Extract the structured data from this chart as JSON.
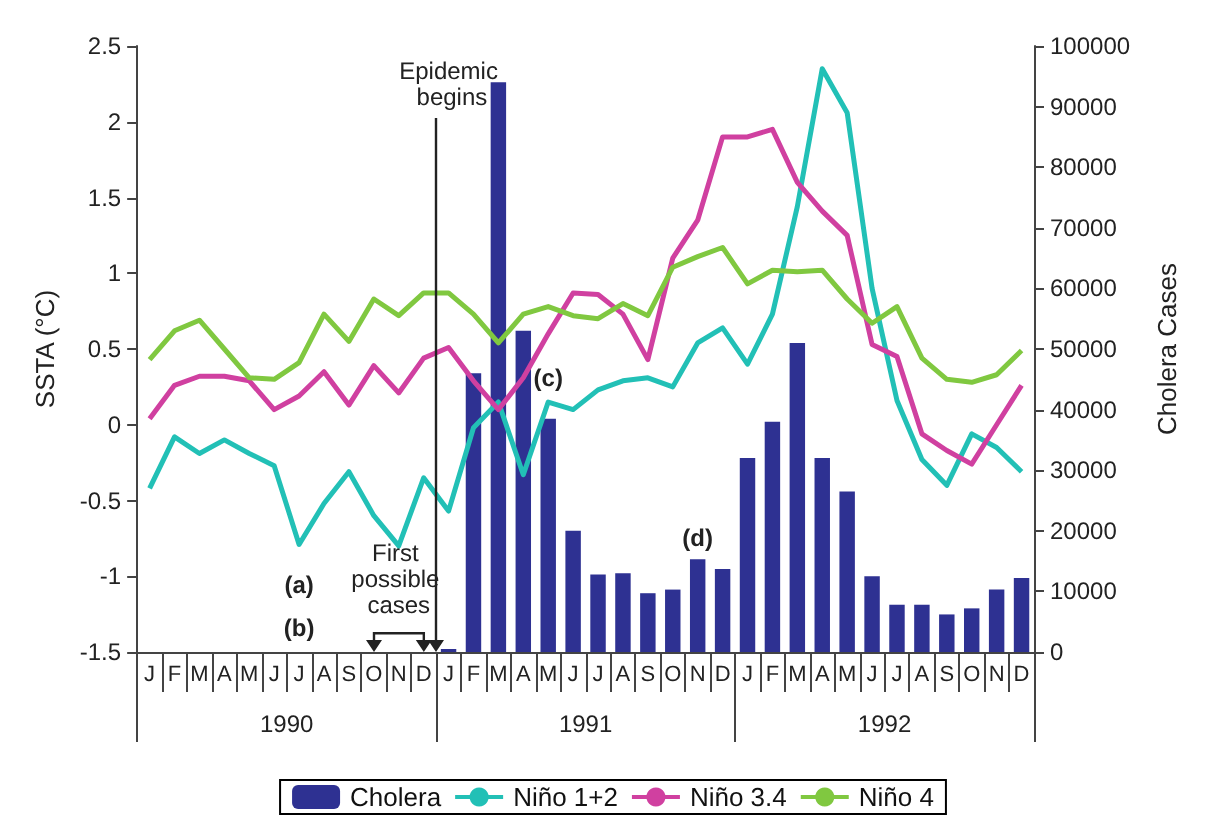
{
  "chart_data": {
    "type": "bar",
    "ylabel": "SSTA (°C)",
    "y2label": "Cholera Cases",
    "categories": [
      "J",
      "F",
      "M",
      "A",
      "M",
      "J",
      "J",
      "A",
      "S",
      "O",
      "N",
      "D",
      "J",
      "F",
      "M",
      "A",
      "M",
      "J",
      "J",
      "A",
      "S",
      "O",
      "N",
      "D",
      "J",
      "F",
      "M",
      "A",
      "M",
      "J",
      "J",
      "A",
      "S",
      "O",
      "N",
      "D"
    ],
    "series": [
      {
        "name": "Cholera",
        "axis": "y2",
        "color": "#2e3192",
        "values": [
          null,
          null,
          null,
          null,
          null,
          null,
          null,
          null,
          null,
          null,
          null,
          null,
          500,
          46000,
          94000,
          53000,
          38500,
          20000,
          12800,
          13000,
          9700,
          10300,
          15300,
          13700,
          32000,
          38000,
          51000,
          32000,
          26500,
          12500,
          7800,
          7800,
          6200,
          7200,
          10300,
          12200
        ]
      },
      {
        "name": "Niño 1+2",
        "type": "line",
        "color": "#22c0b6",
        "values": [
          -0.42,
          -0.08,
          -0.19,
          -0.1,
          -0.19,
          -0.27,
          -0.79,
          -0.52,
          -0.31,
          -0.6,
          -0.8,
          -0.35,
          -0.57,
          -0.02,
          0.15,
          -0.33,
          0.15,
          0.1,
          0.23,
          0.29,
          0.31,
          0.25,
          0.54,
          0.64,
          0.4,
          0.73,
          1.44,
          2.35,
          2.06,
          0.9,
          0.16,
          -0.23,
          -0.4,
          -0.06,
          -0.15,
          -0.31
        ]
      },
      {
        "name": "Niño 3.4",
        "type": "line",
        "color": "#d040a0",
        "values": [
          0.04,
          0.26,
          0.32,
          0.32,
          0.29,
          0.1,
          0.19,
          0.35,
          0.13,
          0.39,
          0.21,
          0.44,
          0.51,
          0.29,
          0.1,
          0.31,
          0.6,
          0.87,
          0.86,
          0.73,
          0.43,
          1.1,
          1.35,
          1.9,
          1.9,
          1.95,
          1.6,
          1.41,
          1.25,
          0.53,
          0.45,
          -0.06,
          -0.17,
          -0.26,
          0.0,
          0.26
        ]
      },
      {
        "name": "Niño 4",
        "type": "line",
        "color": "#80c840",
        "values": [
          0.43,
          0.62,
          0.69,
          0.5,
          0.31,
          0.3,
          0.41,
          0.73,
          0.55,
          0.83,
          0.72,
          0.87,
          0.87,
          0.73,
          0.54,
          0.73,
          0.78,
          0.72,
          0.7,
          0.8,
          0.72,
          1.04,
          1.11,
          1.17,
          0.93,
          1.02,
          1.01,
          1.02,
          0.83,
          0.67,
          0.78,
          0.44,
          0.3,
          0.28,
          0.33,
          0.49
        ]
      }
    ],
    "ylim": [
      -1.5,
      2.5
    ],
    "yticks": [
      -1.5,
      -1,
      -0.5,
      0,
      0.5,
      1,
      1.5,
      2,
      2.5
    ],
    "y2lim": [
      0,
      100000
    ],
    "y2ticks": [
      0,
      10000,
      20000,
      30000,
      40000,
      50000,
      60000,
      70000,
      80000,
      90000,
      100000
    ],
    "annotations": [
      "Epidemic begins",
      "First possible cases",
      "(a)",
      "(b)",
      "(c)",
      "(d)",
      "1990",
      "1991",
      "1992"
    ],
    "grid": false,
    "legend": "bottom",
    "marker": "none",
    "line_style": "solid"
  }
}
